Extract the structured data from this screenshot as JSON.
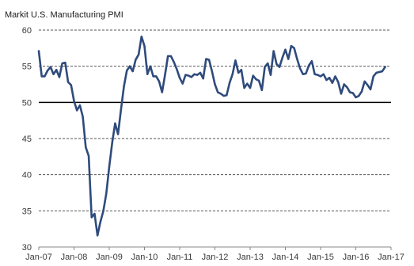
{
  "chart_data": {
    "type": "line",
    "title": "Markit U.S. Manufacturing  PMI",
    "xlabel": "",
    "ylabel": "",
    "ylim": [
      30,
      60
    ],
    "yticks": [
      30,
      35,
      40,
      45,
      50,
      55,
      60
    ],
    "xlim": [
      "2007-01",
      "2017-01"
    ],
    "xtick_labels": [
      "Jan-07",
      "Jan-08",
      "Jan-09",
      "Jan-10",
      "Jan-11",
      "Jan-12",
      "Jan-13",
      "Jan-14",
      "Jan-15",
      "Jan-16",
      "Jan-17"
    ],
    "xtick_dates": [
      "2007-01",
      "2008-01",
      "2009-01",
      "2010-01",
      "2011-01",
      "2012-01",
      "2013-01",
      "2014-01",
      "2015-01",
      "2016-01",
      "2017-01"
    ],
    "grid": true,
    "reference_line": 50,
    "colors": {
      "line": "#2f4b7c",
      "grid": "#555555",
      "reference": "#000000"
    },
    "series": [
      {
        "values": [
          {
            "x": "2007-01",
            "y": 57.1
          },
          {
            "x": "2007-02",
            "y": 53.6
          },
          {
            "x": "2007-03",
            "y": 53.6
          },
          {
            "x": "2007-04",
            "y": 54.4
          },
          {
            "x": "2007-05",
            "y": 54.9
          },
          {
            "x": "2007-06",
            "y": 53.9
          },
          {
            "x": "2007-07",
            "y": 54.5
          },
          {
            "x": "2007-08",
            "y": 53.5
          },
          {
            "x": "2007-09",
            "y": 55.4
          },
          {
            "x": "2007-10",
            "y": 55.5
          },
          {
            "x": "2007-11",
            "y": 52.8
          },
          {
            "x": "2007-12",
            "y": 52.4
          },
          {
            "x": "2008-01",
            "y": 50.2
          },
          {
            "x": "2008-02",
            "y": 48.9
          },
          {
            "x": "2008-03",
            "y": 49.6
          },
          {
            "x": "2008-04",
            "y": 48.0
          },
          {
            "x": "2008-05",
            "y": 43.8
          },
          {
            "x": "2008-06",
            "y": 42.6
          },
          {
            "x": "2008-07",
            "y": 34.1
          },
          {
            "x": "2008-08",
            "y": 34.6
          },
          {
            "x": "2008-09",
            "y": 31.6
          },
          {
            "x": "2008-10",
            "y": 33.5
          },
          {
            "x": "2008-11",
            "y": 35.0
          },
          {
            "x": "2008-12",
            "y": 37.4
          },
          {
            "x": "2009-01",
            "y": 41.1
          },
          {
            "x": "2009-02",
            "y": 44.4
          },
          {
            "x": "2009-03",
            "y": 47.1
          },
          {
            "x": "2009-04",
            "y": 45.6
          },
          {
            "x": "2009-05",
            "y": 49.0
          },
          {
            "x": "2009-06",
            "y": 52.2
          },
          {
            "x": "2009-07",
            "y": 54.4
          },
          {
            "x": "2009-08",
            "y": 55.0
          },
          {
            "x": "2009-09",
            "y": 54.3
          },
          {
            "x": "2009-10",
            "y": 55.9
          },
          {
            "x": "2009-11",
            "y": 56.6
          },
          {
            "x": "2009-12",
            "y": 59.1
          },
          {
            "x": "2010-01",
            "y": 57.8
          },
          {
            "x": "2010-02",
            "y": 53.9
          },
          {
            "x": "2010-03",
            "y": 55.0
          },
          {
            "x": "2010-04",
            "y": 53.6
          },
          {
            "x": "2010-05",
            "y": 53.6
          },
          {
            "x": "2010-06",
            "y": 52.9
          },
          {
            "x": "2010-07",
            "y": 51.4
          },
          {
            "x": "2010-08",
            "y": 53.8
          },
          {
            "x": "2010-09",
            "y": 56.4
          },
          {
            "x": "2010-10",
            "y": 56.4
          },
          {
            "x": "2010-11",
            "y": 55.6
          },
          {
            "x": "2010-12",
            "y": 54.6
          },
          {
            "x": "2011-01",
            "y": 53.4
          },
          {
            "x": "2011-02",
            "y": 52.6
          },
          {
            "x": "2011-03",
            "y": 53.8
          },
          {
            "x": "2011-04",
            "y": 53.7
          },
          {
            "x": "2011-05",
            "y": 53.5
          },
          {
            "x": "2011-06",
            "y": 53.9
          },
          {
            "x": "2011-07",
            "y": 53.8
          },
          {
            "x": "2011-08",
            "y": 54.1
          },
          {
            "x": "2011-09",
            "y": 53.3
          },
          {
            "x": "2011-10",
            "y": 56.0
          },
          {
            "x": "2011-11",
            "y": 55.9
          },
          {
            "x": "2011-12",
            "y": 54.3
          },
          {
            "x": "2012-01",
            "y": 52.5
          },
          {
            "x": "2012-02",
            "y": 51.4
          },
          {
            "x": "2012-03",
            "y": 51.2
          },
          {
            "x": "2012-04",
            "y": 50.9
          },
          {
            "x": "2012-05",
            "y": 51.0
          },
          {
            "x": "2012-06",
            "y": 52.7
          },
          {
            "x": "2012-07",
            "y": 53.9
          },
          {
            "x": "2012-08",
            "y": 55.8
          },
          {
            "x": "2012-09",
            "y": 54.1
          },
          {
            "x": "2012-10",
            "y": 54.5
          },
          {
            "x": "2012-11",
            "y": 52.0
          },
          {
            "x": "2012-12",
            "y": 52.6
          },
          {
            "x": "2013-01",
            "y": 52.0
          },
          {
            "x": "2013-02",
            "y": 53.7
          },
          {
            "x": "2013-03",
            "y": 53.2
          },
          {
            "x": "2013-04",
            "y": 53.0
          },
          {
            "x": "2013-05",
            "y": 51.7
          },
          {
            "x": "2013-06",
            "y": 54.9
          },
          {
            "x": "2013-07",
            "y": 55.4
          },
          {
            "x": "2013-08",
            "y": 53.8
          },
          {
            "x": "2013-09",
            "y": 57.1
          },
          {
            "x": "2013-10",
            "y": 55.3
          },
          {
            "x": "2013-11",
            "y": 54.9
          },
          {
            "x": "2013-12",
            "y": 56.2
          },
          {
            "x": "2014-01",
            "y": 57.3
          },
          {
            "x": "2014-02",
            "y": 56.0
          },
          {
            "x": "2014-03",
            "y": 57.8
          },
          {
            "x": "2014-04",
            "y": 57.5
          },
          {
            "x": "2014-05",
            "y": 56.0
          },
          {
            "x": "2014-06",
            "y": 54.7
          },
          {
            "x": "2014-07",
            "y": 53.9
          },
          {
            "x": "2014-08",
            "y": 54.0
          },
          {
            "x": "2014-09",
            "y": 55.1
          },
          {
            "x": "2014-10",
            "y": 55.7
          },
          {
            "x": "2014-11",
            "y": 53.9
          },
          {
            "x": "2014-12",
            "y": 53.8
          },
          {
            "x": "2015-01",
            "y": 53.6
          },
          {
            "x": "2015-02",
            "y": 53.9
          },
          {
            "x": "2015-03",
            "y": 53.1
          },
          {
            "x": "2015-04",
            "y": 53.4
          },
          {
            "x": "2015-05",
            "y": 52.7
          },
          {
            "x": "2015-06",
            "y": 53.6
          },
          {
            "x": "2015-07",
            "y": 52.8
          },
          {
            "x": "2015-08",
            "y": 51.2
          },
          {
            "x": "2015-09",
            "y": 52.5
          },
          {
            "x": "2015-10",
            "y": 52.1
          },
          {
            "x": "2015-11",
            "y": 51.4
          },
          {
            "x": "2015-12",
            "y": 51.3
          },
          {
            "x": "2016-01",
            "y": 50.7
          },
          {
            "x": "2016-02",
            "y": 50.9
          },
          {
            "x": "2016-03",
            "y": 51.5
          },
          {
            "x": "2016-04",
            "y": 52.9
          },
          {
            "x": "2016-05",
            "y": 52.4
          },
          {
            "x": "2016-06",
            "y": 51.8
          },
          {
            "x": "2016-07",
            "y": 53.6
          },
          {
            "x": "2016-08",
            "y": 54.1
          },
          {
            "x": "2016-09",
            "y": 54.2
          },
          {
            "x": "2016-10",
            "y": 54.3
          },
          {
            "x": "2016-11",
            "y": 54.9
          }
        ]
      }
    ]
  }
}
